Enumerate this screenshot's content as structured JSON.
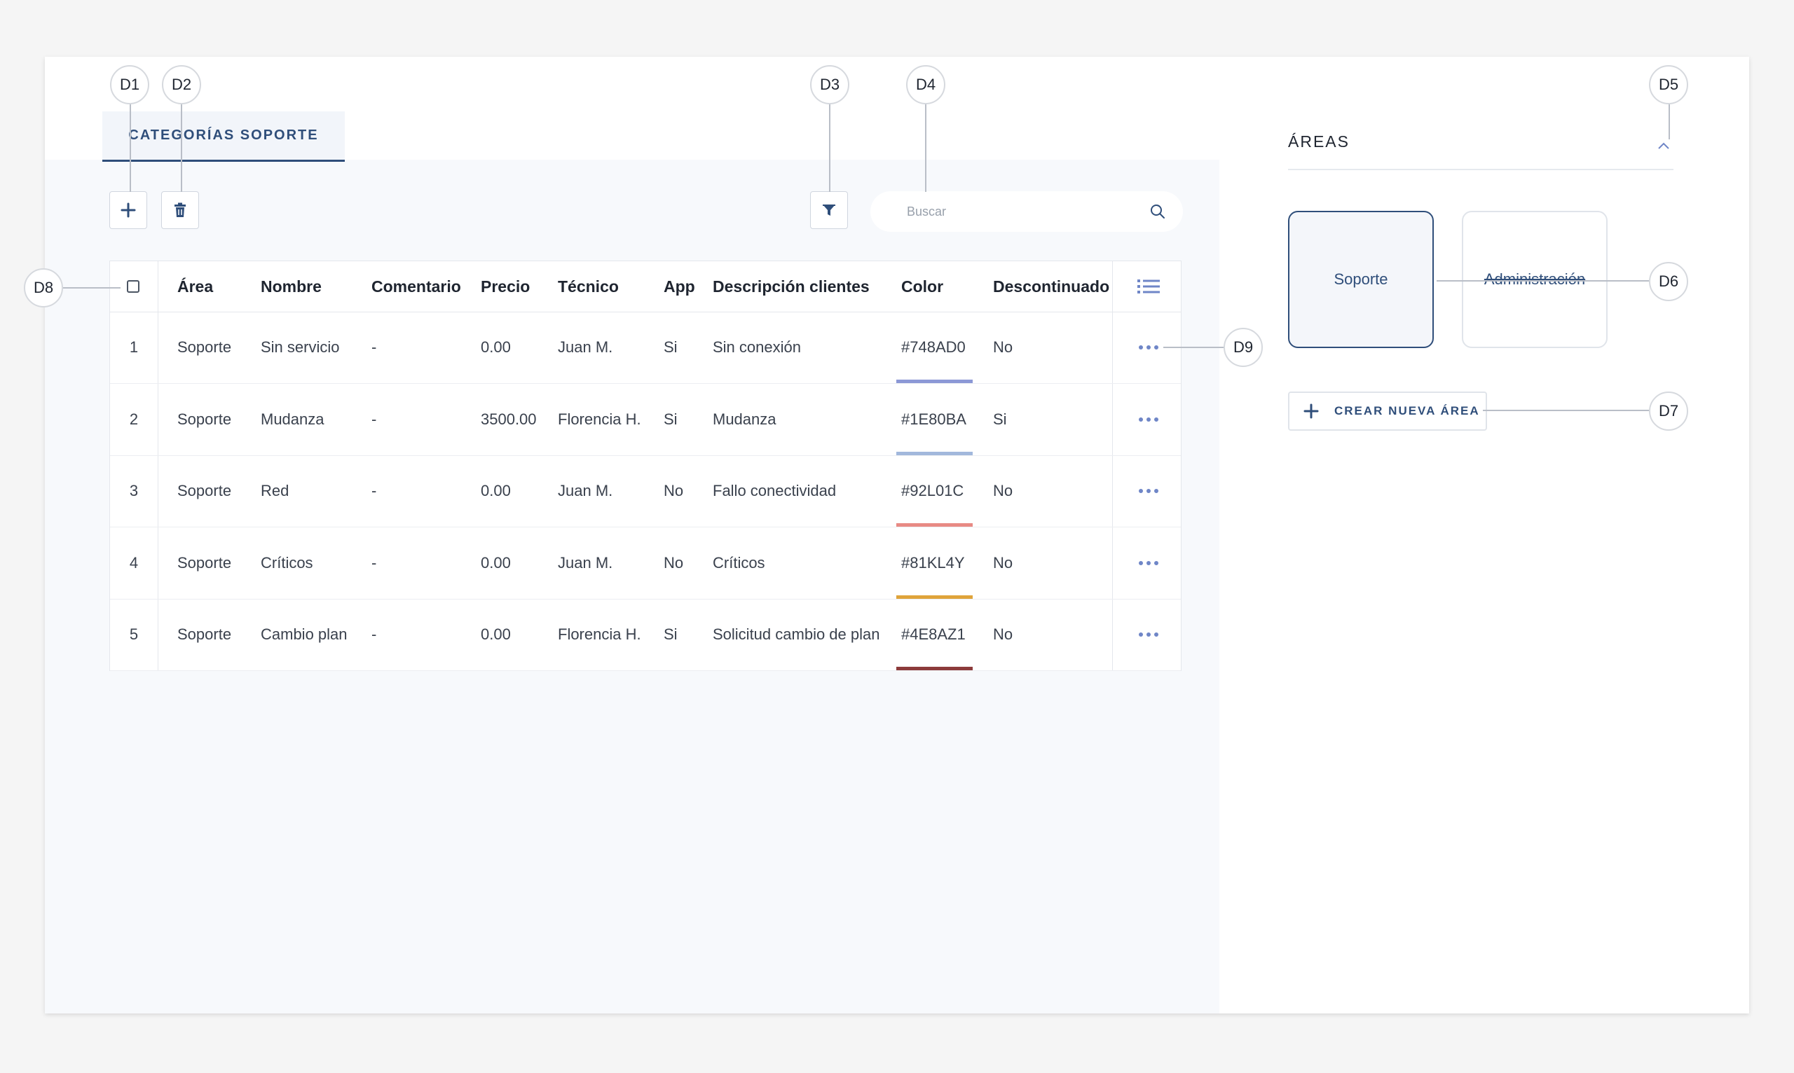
{
  "tab": {
    "label": "CATEGORÍAS SOPORTE"
  },
  "search": {
    "placeholder": "Buscar"
  },
  "table": {
    "columns": [
      "Área",
      "Nombre",
      "Comentario",
      "Precio",
      "Técnico",
      "App",
      "Descripción clientes",
      "Color",
      "Descontinuado"
    ],
    "rows": [
      {
        "num": "1",
        "area": "Soporte",
        "nombre": "Sin servicio",
        "comentario": "-",
        "precio": "0.00",
        "tecnico": "Juan M.",
        "app": "Si",
        "descripcion": "Sin conexión",
        "color": "#748AD0",
        "color_swatch": "#8c98d6",
        "descontinuado": "No"
      },
      {
        "num": "2",
        "area": "Soporte",
        "nombre": "Mudanza",
        "comentario": "-",
        "precio": "3500.00",
        "tecnico": "Florencia H.",
        "app": "Si",
        "descripcion": "Mudanza",
        "color": "#1E80BA",
        "color_swatch": "#a2b8dc",
        "descontinuado": "Si"
      },
      {
        "num": "3",
        "area": "Soporte",
        "nombre": "Red",
        "comentario": "-",
        "precio": "0.00",
        "tecnico": "Juan M.",
        "app": "No",
        "descripcion": "Fallo conectividad",
        "color": "#92L01C",
        "color_swatch": "#e88a84",
        "descontinuado": "No"
      },
      {
        "num": "4",
        "area": "Soporte",
        "nombre": "Críticos",
        "comentario": "-",
        "precio": "0.00",
        "tecnico": "Juan M.",
        "app": "No",
        "descripcion": "Críticos",
        "color": "#81KL4Y",
        "color_swatch": "#dfa43a",
        "descontinuado": "No"
      },
      {
        "num": "5",
        "area": "Soporte",
        "nombre": "Cambio plan",
        "comentario": "-",
        "precio": "0.00",
        "tecnico": "Florencia H.",
        "app": "Si",
        "descripcion": "Solicitud cambio de plan",
        "color": "#4E8AZ1",
        "color_swatch": "#8c3b3b",
        "descontinuado": "No"
      }
    ]
  },
  "areas": {
    "title": "ÁREAS",
    "items": [
      "Soporte",
      "Administración"
    ],
    "new_area_label": "CREAR NUEVA ÁREA"
  },
  "callouts": [
    "D1",
    "D2",
    "D3",
    "D4",
    "D5",
    "D6",
    "D7",
    "D8",
    "D9"
  ],
  "colors": {
    "accent": "#2f4e7a",
    "dots": "#6f86c7",
    "panel_bg": "#f7f9fc"
  },
  "icons": {
    "add": "plus-icon",
    "delete": "trash-icon",
    "filter": "filter-icon",
    "search": "search-icon",
    "columns": "list-icon",
    "more": "more-horizontal-icon",
    "collapse": "chevron-up-icon"
  }
}
